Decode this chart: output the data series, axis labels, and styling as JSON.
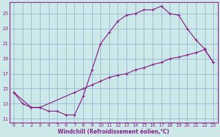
{
  "xlabel": "Windchill (Refroidissement éolien,°C)",
  "bg_color": "#cce8e8",
  "line_color": "#882288",
  "grid_color": "#88aacc",
  "xlim": [
    -0.5,
    23.5
  ],
  "ylim": [
    10.5,
    26.5
  ],
  "xticks": [
    0,
    1,
    2,
    3,
    4,
    5,
    6,
    7,
    8,
    9,
    10,
    11,
    12,
    13,
    14,
    15,
    16,
    17,
    18,
    19,
    20,
    21,
    22,
    23
  ],
  "yticks": [
    11,
    13,
    15,
    17,
    19,
    21,
    23,
    25
  ],
  "upper_x": [
    0,
    1,
    2,
    3,
    4,
    5,
    6,
    7,
    8,
    9,
    10,
    11,
    12,
    13,
    14,
    15,
    16,
    17,
    18,
    19,
    20,
    21,
    22,
    23
  ],
  "upper_y": [
    14.5,
    13.0,
    12.5,
    12.5,
    12.0,
    12.0,
    11.5,
    11.5,
    14.0,
    17.5,
    21.0,
    22.5,
    24.0,
    24.8,
    25.0,
    25.5,
    25.5,
    26.0,
    25.0,
    24.8,
    23.0,
    21.5,
    20.3,
    18.5
  ],
  "lower_x": [
    0,
    2,
    3,
    7,
    8,
    9,
    10,
    11,
    12,
    13,
    14,
    15,
    16,
    17,
    18,
    19,
    20,
    21,
    22,
    23
  ],
  "lower_y": [
    14.5,
    12.5,
    12.5,
    14.5,
    15.0,
    15.5,
    16.0,
    16.5,
    16.8,
    17.0,
    17.5,
    17.8,
    18.2,
    18.5,
    19.0,
    19.2,
    19.5,
    19.8,
    20.2,
    18.5
  ]
}
